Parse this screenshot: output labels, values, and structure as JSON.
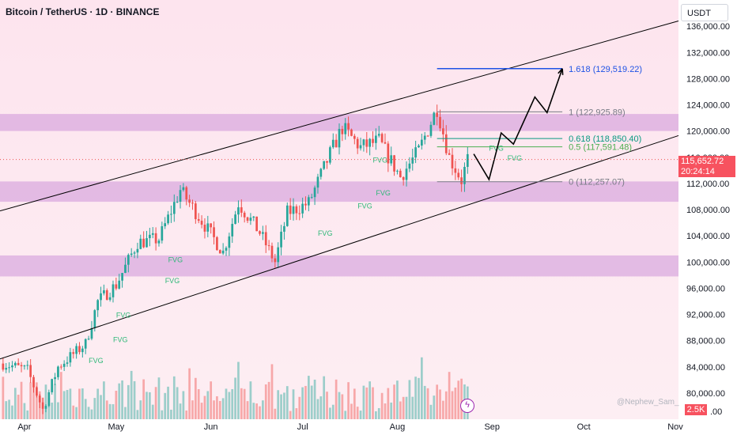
{
  "header": {
    "title": "Bitcoin / TetherUS · 1D · BINANCE"
  },
  "price_axis": {
    "unit": "USDT"
  },
  "last_price": {
    "value": "115,652.72",
    "countdown": "20:24:14"
  },
  "volume_tag": "2.5K",
  "watermark": "@Nephew_Sam_",
  "colors": {
    "up": "#26a69a",
    "down": "#ef5350",
    "zone": "#ce93d8",
    "channel": "#000000",
    "target": "#1e53e5"
  },
  "chart_data": {
    "type": "candlestick",
    "title": "Bitcoin / TetherUS · 1D · BINANCE",
    "x_ticks": [
      "Apr",
      "May",
      "Jun",
      "Jul",
      "Aug",
      "Sep",
      "Oct",
      "Nov"
    ],
    "y_ticks": [
      "80,000.00",
      "84,000.00",
      "88,000.00",
      "92,000.00",
      "96,000.00",
      "100,000.00",
      "104,000.00",
      "108,000.00",
      "112,000.00",
      "116,000.00",
      "120,000.00",
      "124,000.00",
      "128,000.00",
      "132,000.00",
      "136,000.00"
    ],
    "y_tick_values": [
      80000,
      84000,
      88000,
      92000,
      96000,
      100000,
      104000,
      108000,
      112000,
      116000,
      120000,
      124000,
      128000,
      132000,
      136000
    ],
    "y_axis_bottom_label": ".00",
    "ylim": [
      76000,
      140000
    ],
    "xlim": [
      "2025-03-24",
      "2025-11-01"
    ],
    "price_path": [
      {
        "date": "2025-03-25",
        "price": 84500
      },
      {
        "date": "2025-04-02",
        "price": 83500
      },
      {
        "date": "2025-04-07",
        "price": 77500
      },
      {
        "date": "2025-04-12",
        "price": 84000
      },
      {
        "date": "2025-04-21",
        "price": 87500
      },
      {
        "date": "2025-04-25",
        "price": 94000
      },
      {
        "date": "2025-05-01",
        "price": 96500
      },
      {
        "date": "2025-05-08",
        "price": 103000
      },
      {
        "date": "2025-05-15",
        "price": 103500
      },
      {
        "date": "2025-05-22",
        "price": 111000
      },
      {
        "date": "2025-05-28",
        "price": 107000
      },
      {
        "date": "2025-06-05",
        "price": 101500
      },
      {
        "date": "2025-06-10",
        "price": 109000
      },
      {
        "date": "2025-06-17",
        "price": 104500
      },
      {
        "date": "2025-06-22",
        "price": 100000
      },
      {
        "date": "2025-06-26",
        "price": 107500
      },
      {
        "date": "2025-07-03",
        "price": 109000
      },
      {
        "date": "2025-07-10",
        "price": 116500
      },
      {
        "date": "2025-07-14",
        "price": 120500
      },
      {
        "date": "2025-07-20",
        "price": 117500
      },
      {
        "date": "2025-07-26",
        "price": 118500
      },
      {
        "date": "2025-08-02",
        "price": 113000
      },
      {
        "date": "2025-08-08",
        "price": 117000
      },
      {
        "date": "2025-08-14",
        "price": 123500
      },
      {
        "date": "2025-08-18",
        "price": 116000
      },
      {
        "date": "2025-08-22",
        "price": 112500
      },
      {
        "date": "2025-08-24",
        "price": 115650
      }
    ],
    "channel": {
      "upper": [
        {
          "date": "2025-03-24",
          "price": 107800
        },
        {
          "date": "2025-11-01",
          "price": 136800
        }
      ],
      "lower": [
        {
          "date": "2025-03-24",
          "price": 85200
        },
        {
          "date": "2025-11-01",
          "price": 119300
        }
      ]
    },
    "zones": [
      {
        "from": 120000,
        "to": 122600
      },
      {
        "from": 109200,
        "to": 112300
      },
      {
        "from": 97800,
        "to": 101000
      }
    ],
    "fib_levels": [
      {
        "label": "1.618 (129,519.22)",
        "ratio": 1.618,
        "price": 129519.22,
        "color": "#1e53e5"
      },
      {
        "label": "1 (122,925.89)",
        "ratio": 1,
        "price": 122925.89,
        "color": "#787b86"
      },
      {
        "label": "0.618 (118,850.40)",
        "ratio": 0.618,
        "price": 118850.4,
        "color": "#089981"
      },
      {
        "label": "0.5 (117,591.48)",
        "ratio": 0.5,
        "price": 117591.48,
        "color": "#4caf50"
      },
      {
        "label": "0 (112,257.07)",
        "ratio": 0,
        "price": 112257.07,
        "color": "#787b86"
      }
    ],
    "fvg_labels": [
      {
        "text": "FVG",
        "date": "2025-05-18",
        "price": 100000
      },
      {
        "text": "FVG",
        "date": "2025-05-17",
        "price": 96800
      },
      {
        "text": "FVG",
        "date": "2025-05-01",
        "price": 91500
      },
      {
        "text": "FVG",
        "date": "2025-04-30",
        "price": 87800
      },
      {
        "text": "FVG",
        "date": "2025-04-22",
        "price": 84600
      },
      {
        "text": "FVG",
        "date": "2025-07-06",
        "price": 104000
      },
      {
        "text": "FVG",
        "date": "2025-07-19",
        "price": 108200
      },
      {
        "text": "FVG",
        "date": "2025-07-25",
        "price": 110200
      },
      {
        "text": "FVG",
        "date": "2025-07-24",
        "price": 115200
      },
      {
        "text": "FVG",
        "date": "2025-08-31",
        "price": 117000
      },
      {
        "text": "FVG",
        "date": "2025-09-06",
        "price": 115500
      }
    ],
    "projection": [
      {
        "date": "2025-08-26",
        "price": 116500
      },
      {
        "date": "2025-08-31",
        "price": 112600
      },
      {
        "date": "2025-09-04",
        "price": 119700
      },
      {
        "date": "2025-09-08",
        "price": 118000
      },
      {
        "date": "2025-09-15",
        "price": 125200
      },
      {
        "date": "2025-09-19",
        "price": 122800
      },
      {
        "date": "2025-09-24",
        "price": 129519
      }
    ]
  }
}
